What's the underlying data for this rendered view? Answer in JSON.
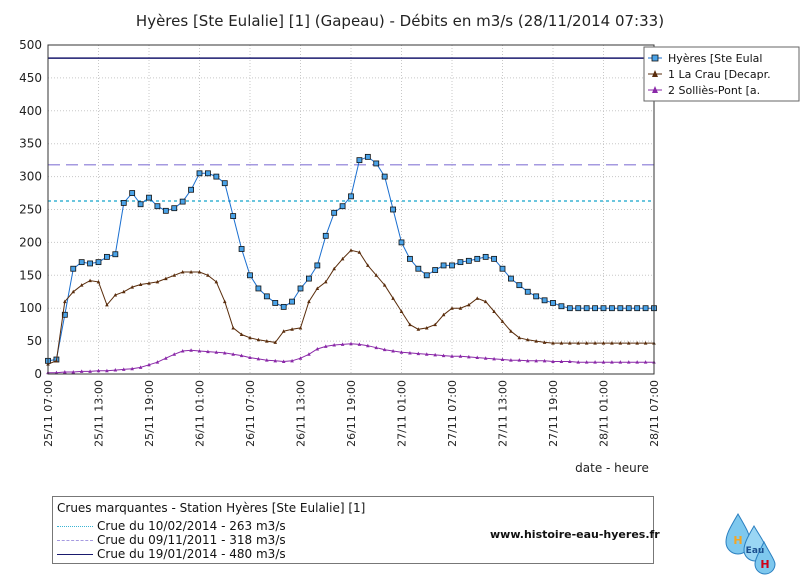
{
  "chart_data": {
    "type": "line",
    "title": "Hyères [Ste Eulalie] [1] (Gapeau) - Débits en m3/s (28/11/2014 07:33)",
    "xlabel": "date  -  heure",
    "ylabel": "",
    "ylim": [
      0,
      500
    ],
    "y_ticks": [
      "0",
      "50",
      "100",
      "150",
      "200",
      "250",
      "300",
      "350",
      "400",
      "450",
      "500"
    ],
    "x_ticks": [
      "25/11 07:00",
      "25/11 13:00",
      "25/11 19:00",
      "26/11 01:00",
      "26/11 07:00",
      "26/11 13:00",
      "26/11 19:00",
      "27/11 01:00",
      "27/11 07:00",
      "27/11 13:00",
      "27/11 19:00",
      "28/11 01:00",
      "28/11 07:00"
    ],
    "x_hours_range": [
      0,
      72
    ],
    "grid": "both",
    "legend_position": "top-right",
    "series": [
      {
        "name": "Hyères [Ste Eulal",
        "color": "#1a6fd0",
        "marker": "square",
        "x": [
          0,
          1,
          2,
          3,
          4,
          5,
          6,
          7,
          8,
          9,
          10,
          11,
          12,
          13,
          14,
          15,
          16,
          17,
          18,
          19,
          20,
          21,
          22,
          23,
          24,
          25,
          26,
          27,
          28,
          29,
          30,
          31,
          32,
          33,
          34,
          35,
          36,
          37,
          38,
          39,
          40,
          41,
          42,
          43,
          44,
          45,
          46,
          47,
          48,
          49,
          50,
          51,
          52,
          53,
          54,
          55,
          56,
          57,
          58,
          59,
          60,
          61,
          62,
          63,
          64,
          65,
          66,
          67,
          68,
          69,
          70,
          71,
          72
        ],
        "values": [
          20,
          22,
          90,
          160,
          170,
          168,
          170,
          178,
          182,
          260,
          275,
          258,
          268,
          255,
          248,
          252,
          262,
          280,
          305,
          305,
          300,
          290,
          240,
          190,
          150,
          130,
          118,
          108,
          102,
          110,
          130,
          145,
          165,
          210,
          245,
          255,
          270,
          325,
          330,
          320,
          300,
          250,
          200,
          175,
          160,
          150,
          158,
          165,
          165,
          170,
          172,
          175,
          178,
          175,
          160,
          145,
          135,
          125,
          118,
          112,
          108,
          103,
          100,
          100,
          100,
          100,
          100,
          100,
          100,
          100,
          100,
          100,
          100
        ]
      },
      {
        "name": "1 La Crau [Decapr.",
        "color": "#5a2d0c",
        "marker": "triangle",
        "x": [
          0,
          1,
          2,
          3,
          4,
          5,
          6,
          7,
          8,
          9,
          10,
          11,
          12,
          13,
          14,
          15,
          16,
          17,
          18,
          19,
          20,
          21,
          22,
          23,
          24,
          25,
          26,
          27,
          28,
          29,
          30,
          31,
          32,
          33,
          34,
          35,
          36,
          37,
          38,
          39,
          40,
          41,
          42,
          43,
          44,
          45,
          46,
          47,
          48,
          49,
          50,
          51,
          52,
          53,
          54,
          55,
          56,
          57,
          58,
          59,
          60,
          61,
          62,
          63,
          64,
          65,
          66,
          67,
          68,
          69,
          70,
          71,
          72
        ],
        "values": [
          15,
          20,
          110,
          125,
          135,
          142,
          140,
          105,
          120,
          125,
          132,
          136,
          138,
          140,
          145,
          150,
          155,
          155,
          155,
          150,
          140,
          110,
          70,
          60,
          55,
          52,
          50,
          48,
          65,
          68,
          70,
          110,
          130,
          140,
          160,
          175,
          188,
          185,
          165,
          150,
          135,
          115,
          95,
          75,
          68,
          70,
          75,
          90,
          100,
          100,
          105,
          115,
          110,
          95,
          80,
          65,
          55,
          52,
          50,
          48,
          47,
          47,
          47,
          47,
          47,
          47,
          47,
          47,
          47,
          47,
          47,
          47,
          47
        ]
      },
      {
        "name": "2 Solliès-Pont [a.",
        "color": "#8a28a8",
        "marker": "triangle",
        "x": [
          0,
          1,
          2,
          3,
          4,
          5,
          6,
          7,
          8,
          9,
          10,
          11,
          12,
          13,
          14,
          15,
          16,
          17,
          18,
          19,
          20,
          21,
          22,
          23,
          24,
          25,
          26,
          27,
          28,
          29,
          30,
          31,
          32,
          33,
          34,
          35,
          36,
          37,
          38,
          39,
          40,
          41,
          42,
          43,
          44,
          45,
          46,
          47,
          48,
          49,
          50,
          51,
          52,
          53,
          54,
          55,
          56,
          57,
          58,
          59,
          60,
          61,
          62,
          63,
          64,
          65,
          66,
          67,
          68,
          69,
          70,
          71,
          72
        ],
        "values": [
          2,
          2,
          3,
          3,
          4,
          4,
          5,
          5,
          6,
          7,
          8,
          10,
          14,
          18,
          24,
          30,
          35,
          36,
          35,
          34,
          33,
          32,
          30,
          28,
          25,
          23,
          21,
          20,
          19,
          20,
          24,
          30,
          38,
          42,
          44,
          45,
          46,
          45,
          43,
          40,
          37,
          35,
          33,
          32,
          31,
          30,
          29,
          28,
          27,
          27,
          26,
          25,
          24,
          23,
          22,
          21,
          21,
          20,
          20,
          20,
          19,
          19,
          19,
          18,
          18,
          18,
          18,
          18,
          18,
          18,
          18,
          18,
          18
        ]
      }
    ],
    "reference_lines": [
      {
        "label": "Crue du 10/02/2014 - 263 m3/s",
        "value": 263,
        "color": "#3ab4d4",
        "dash": "dotted"
      },
      {
        "label": "Crue du 09/11/2011 - 318 m3/s",
        "value": 318,
        "color": "#a59ae0",
        "dash": "dashed"
      },
      {
        "label": "Crue du 19/01/2014 - 480 m3/s",
        "value": 480,
        "color": "#1a1a6e",
        "dash": "solid"
      }
    ]
  },
  "crues": {
    "title": "Crues marquantes - Station Hyères [Ste Eulalie] [1]",
    "rows": [
      "Crue du 10/02/2014 - 263 m3/s",
      "Crue du 09/11/2011 - 318 m3/s",
      "Crue du 19/01/2014 - 480 m3/s"
    ]
  },
  "site": {
    "url": "www.histoire-eau-hyeres.fr"
  },
  "logo": {
    "text_h": "H",
    "text_eau": "Eau",
    "text_h2": "H"
  }
}
